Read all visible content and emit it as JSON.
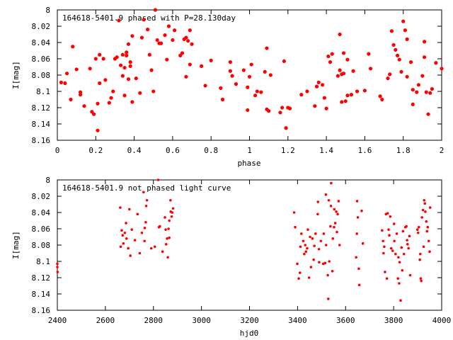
{
  "chart_data": [
    {
      "type": "scatter",
      "title": "164618-5401.9 phased with P=28.130day",
      "xlabel": "phase",
      "ylabel": "I[mag]",
      "xlim": [
        0,
        2
      ],
      "ylim": [
        8.16,
        8.0
      ],
      "y_inverted": true,
      "grid": false,
      "legend": "none",
      "marker_color": "#ff0000",
      "xticks": [
        "0",
        "0.2",
        "0.4",
        "0.6",
        "0.8",
        "1",
        "1.2",
        "1.4",
        "1.6",
        "1.8",
        "2"
      ],
      "xtick_values": [
        0,
        0.2,
        0.4,
        0.6,
        0.8,
        1.0,
        1.2,
        1.4,
        1.6,
        1.8,
        2.0
      ],
      "yticks": [
        "8",
        "8.02",
        "8.04",
        "8.06",
        "8.08",
        "8.1",
        "8.12",
        "8.14",
        "8.16"
      ],
      "ytick_values": [
        8.0,
        8.02,
        8.04,
        8.06,
        8.08,
        8.1,
        8.12,
        8.14,
        8.16
      ],
      "points": [
        [
          0.02,
          8.089
        ],
        [
          0.04,
          8.09
        ],
        [
          0.05,
          8.078
        ],
        [
          0.07,
          8.11
        ],
        [
          0.08,
          8.045
        ],
        [
          0.1,
          8.073
        ],
        [
          0.12,
          8.101
        ],
        [
          0.12,
          8.104
        ],
        [
          0.14,
          8.118
        ],
        [
          0.17,
          8.072
        ],
        [
          0.18,
          8.125
        ],
        [
          0.19,
          8.128
        ],
        [
          0.2,
          8.06
        ],
        [
          0.21,
          8.148
        ],
        [
          0.21,
          8.115
        ],
        [
          0.22,
          8.09
        ],
        [
          0.22,
          8.055
        ],
        [
          0.24,
          8.06
        ],
        [
          0.25,
          8.086
        ],
        [
          0.27,
          8.114
        ],
        [
          0.28,
          8.108
        ],
        [
          0.29,
          8.1
        ],
        [
          0.3,
          8.06
        ],
        [
          0.31,
          8.058
        ],
        [
          0.32,
          8.013
        ],
        [
          0.33,
          8.068
        ],
        [
          0.34,
          8.055
        ],
        [
          0.34,
          8.081
        ],
        [
          0.35,
          8.105
        ],
        [
          0.35,
          8.071
        ],
        [
          0.36,
          8.056
        ],
        [
          0.36,
          8.052
        ],
        [
          0.37,
          8.042
        ],
        [
          0.37,
          8.085
        ],
        [
          0.38,
          8.064
        ],
        [
          0.38,
          8.069
        ],
        [
          0.39,
          8.032
        ],
        [
          0.39,
          8.113
        ],
        [
          0.41,
          8.084
        ],
        [
          0.43,
          8.102
        ],
        [
          0.44,
          8.034
        ],
        [
          0.45,
          8.012
        ],
        [
          0.47,
          8.024
        ],
        [
          0.48,
          8.055
        ],
        [
          0.49,
          8.074
        ],
        [
          0.5,
          8.1
        ],
        [
          0.51,
          8.0
        ],
        [
          0.52,
          8.037
        ],
        [
          0.53,
          8.041
        ],
        [
          0.54,
          8.041
        ],
        [
          0.56,
          8.031
        ],
        [
          0.57,
          8.061
        ],
        [
          0.58,
          8.02
        ],
        [
          0.6,
          8.037
        ],
        [
          0.61,
          8.025
        ],
        [
          0.64,
          8.056
        ],
        [
          0.65,
          8.053
        ],
        [
          0.66,
          8.036
        ],
        [
          0.67,
          8.082
        ],
        [
          0.67,
          8.034
        ],
        [
          0.68,
          8.038
        ],
        [
          0.69,
          8.025
        ],
        [
          0.69,
          8.067
        ],
        [
          0.7,
          8.042
        ],
        [
          0.75,
          8.069
        ],
        [
          0.77,
          8.093
        ],
        [
          0.8,
          8.062
        ],
        [
          0.85,
          8.096
        ],
        [
          0.86,
          8.11
        ],
        [
          0.9,
          8.064
        ],
        [
          0.9,
          8.075
        ],
        [
          0.91,
          8.081
        ],
        [
          0.93,
          8.091
        ],
        [
          0.97,
          8.074
        ],
        [
          0.99,
          8.123
        ],
        [
          0.99,
          8.095
        ],
        [
          1.0,
          8.082
        ],
        [
          1.01,
          8.067
        ],
        [
          1.03,
          8.105
        ],
        [
          1.04,
          8.1
        ],
        [
          1.06,
          8.101
        ],
        [
          1.08,
          8.076
        ],
        [
          1.09,
          8.122
        ],
        [
          1.09,
          8.047
        ],
        [
          1.1,
          8.124
        ],
        [
          1.11,
          8.08
        ],
        [
          1.16,
          8.126
        ],
        [
          1.17,
          8.12
        ],
        [
          1.18,
          8.063
        ],
        [
          1.19,
          8.145
        ],
        [
          1.2,
          8.12
        ],
        [
          1.21,
          8.121
        ],
        [
          1.27,
          8.104
        ],
        [
          1.3,
          8.1
        ],
        [
          1.34,
          8.118
        ],
        [
          1.35,
          8.094
        ],
        [
          1.36,
          8.089
        ],
        [
          1.38,
          8.092
        ],
        [
          1.39,
          8.108
        ],
        [
          1.4,
          8.121
        ],
        [
          1.41,
          8.057
        ],
        [
          1.42,
          8.064
        ],
        [
          1.43,
          8.054
        ],
        [
          1.46,
          8.081
        ],
        [
          1.47,
          8.03
        ],
        [
          1.47,
          8.074
        ],
        [
          1.48,
          8.079
        ],
        [
          1.48,
          8.113
        ],
        [
          1.49,
          8.053
        ],
        [
          1.49,
          8.078
        ],
        [
          1.5,
          8.112
        ],
        [
          1.51,
          8.105
        ],
        [
          1.51,
          8.061
        ],
        [
          1.53,
          8.104
        ],
        [
          1.54,
          8.075
        ],
        [
          1.56,
          8.1
        ],
        [
          1.6,
          8.099
        ],
        [
          1.62,
          8.054
        ],
        [
          1.63,
          8.072
        ],
        [
          1.68,
          8.106
        ],
        [
          1.69,
          8.11
        ],
        [
          1.72,
          8.084
        ],
        [
          1.73,
          8.079
        ],
        [
          1.74,
          8.026
        ],
        [
          1.75,
          8.043
        ],
        [
          1.76,
          8.049
        ],
        [
          1.77,
          8.056
        ],
        [
          1.78,
          8.061
        ],
        [
          1.79,
          8.076
        ],
        [
          1.8,
          8.014
        ],
        [
          1.81,
          8.025
        ],
        [
          1.82,
          8.036
        ],
        [
          1.82,
          8.082
        ],
        [
          1.84,
          8.064
        ],
        [
          1.85,
          8.098
        ],
        [
          1.85,
          8.116
        ],
        [
          1.87,
          8.101
        ],
        [
          1.88,
          8.092
        ],
        [
          1.9,
          8.081
        ],
        [
          1.91,
          8.058
        ],
        [
          1.91,
          8.039
        ],
        [
          1.92,
          8.101
        ],
        [
          1.93,
          8.128
        ],
        [
          1.94,
          8.102
        ],
        [
          1.95,
          8.097
        ],
        [
          1.97,
          8.065
        ],
        [
          2.0,
          8.072
        ]
      ]
    },
    {
      "type": "scatter",
      "title": "164618-5401.9 not phased light curve",
      "xlabel": "hjd0",
      "ylabel": "I[mag]",
      "xlim": [
        2400,
        4000
      ],
      "ylim": [
        8.16,
        8.0
      ],
      "y_inverted": true,
      "grid": false,
      "legend": "none",
      "marker_color": "#ff0000",
      "xticks": [
        "2400",
        "2600",
        "2800",
        "3000",
        "3200",
        "3400",
        "3600",
        "3800",
        "4000"
      ],
      "xtick_values": [
        2400,
        2600,
        2800,
        3000,
        3200,
        3400,
        3600,
        3800,
        4000
      ],
      "yticks": [
        "8",
        "8.02",
        "8.04",
        "8.06",
        "8.08",
        "8.1",
        "8.12",
        "8.14",
        "8.16"
      ],
      "ytick_values": [
        8.0,
        8.02,
        8.04,
        8.06,
        8.08,
        8.1,
        8.12,
        8.14,
        8.16
      ],
      "points": [
        [
          2400,
          8.103
        ],
        [
          2400,
          8.107
        ],
        [
          2401,
          8.113
        ],
        [
          2662,
          8.034
        ],
        [
          2664,
          8.082
        ],
        [
          2668,
          8.062
        ],
        [
          2672,
          8.068
        ],
        [
          2675,
          8.078
        ],
        [
          2681,
          8.065
        ],
        [
          2686,
          8.053
        ],
        [
          2688,
          8.072
        ],
        [
          2695,
          8.084
        ],
        [
          2700,
          8.036
        ],
        [
          2704,
          8.093
        ],
        [
          2710,
          8.061
        ],
        [
          2723,
          8.074
        ],
        [
          2734,
          8.042
        ],
        [
          2743,
          8.09
        ],
        [
          2752,
          8.065
        ],
        [
          2759,
          8.015
        ],
        [
          2763,
          8.075
        ],
        [
          2764,
          8.059
        ],
        [
          2768,
          8.052
        ],
        [
          2770,
          8.032
        ],
        [
          2773,
          8.025
        ],
        [
          2791,
          8.084
        ],
        [
          2806,
          8.082
        ],
        [
          2820,
          8.0
        ],
        [
          2823,
          8.058
        ],
        [
          2827,
          8.057
        ],
        [
          2838,
          8.088
        ],
        [
          2848,
          8.046
        ],
        [
          2851,
          8.061
        ],
        [
          2853,
          8.079
        ],
        [
          2857,
          8.072
        ],
        [
          2860,
          8.095
        ],
        [
          2863,
          8.06
        ],
        [
          2866,
          8.071
        ],
        [
          2866,
          8.05
        ],
        [
          2871,
          8.025
        ],
        [
          2872,
          8.039
        ],
        [
          2876,
          8.045
        ],
        [
          2878,
          8.04
        ],
        [
          2882,
          8.035
        ],
        [
          3386,
          8.04
        ],
        [
          3390,
          8.058
        ],
        [
          3399,
          8.103
        ],
        [
          3405,
          8.121
        ],
        [
          3410,
          8.114
        ],
        [
          3412,
          8.082
        ],
        [
          3416,
          8.066
        ],
        [
          3424,
          8.075
        ],
        [
          3428,
          8.091
        ],
        [
          3432,
          8.08
        ],
        [
          3435,
          8.088
        ],
        [
          3440,
          8.084
        ],
        [
          3443,
          8.061
        ],
        [
          3448,
          8.12
        ],
        [
          3452,
          8.07
        ],
        [
          3456,
          8.107
        ],
        [
          3462,
          8.072
        ],
        [
          3467,
          8.098
        ],
        [
          3470,
          8.081
        ],
        [
          3475,
          8.066
        ],
        [
          3484,
          8.042
        ],
        [
          3485,
          8.027
        ],
        [
          3489,
          8.085
        ],
        [
          3490,
          8.101
        ],
        [
          3497,
          8.075
        ],
        [
          3507,
          8.103
        ],
        [
          3509,
          8.066
        ],
        [
          3515,
          8.102
        ],
        [
          3518,
          8.018
        ],
        [
          3519,
          8.08
        ],
        [
          3526,
          8.117
        ],
        [
          3528,
          8.146
        ],
        [
          3530,
          8.025
        ],
        [
          3532,
          8.1
        ],
        [
          3537,
          8.057
        ],
        [
          3539,
          8.032
        ],
        [
          3540,
          8.004
        ],
        [
          3545,
          8.112
        ],
        [
          3547,
          8.072
        ],
        [
          3552,
          8.058
        ],
        [
          3553,
          8.036
        ],
        [
          3557,
          8.053
        ],
        [
          3561,
          8.039
        ],
        [
          3564,
          8.064
        ],
        [
          3567,
          8.042
        ],
        [
          3571,
          8.026
        ],
        [
          3575,
          8.08
        ],
        [
          3644,
          8.095
        ],
        [
          3647,
          8.066
        ],
        [
          3648,
          8.026
        ],
        [
          3651,
          8.046
        ],
        [
          3655,
          8.109
        ],
        [
          3657,
          8.129
        ],
        [
          3667,
          8.038
        ],
        [
          3672,
          8.078
        ],
        [
          3752,
          8.062
        ],
        [
          3756,
          8.075
        ],
        [
          3758,
          8.09
        ],
        [
          3761,
          8.082
        ],
        [
          3764,
          8.113
        ],
        [
          3768,
          8.042
        ],
        [
          3772,
          8.121
        ],
        [
          3775,
          8.041
        ],
        [
          3779,
          8.061
        ],
        [
          3782,
          8.068
        ],
        [
          3786,
          8.045
        ],
        [
          3790,
          8.084
        ],
        [
          3796,
          8.087
        ],
        [
          3802,
          8.054
        ],
        [
          3803,
          8.075
        ],
        [
          3808,
          8.091
        ],
        [
          3813,
          8.066
        ],
        [
          3818,
          8.121
        ],
        [
          3820,
          8.095
        ],
        [
          3823,
          8.127
        ],
        [
          3825,
          8.101
        ],
        [
          3829,
          8.148
        ],
        [
          3833,
          8.083
        ],
        [
          3836,
          8.111
        ],
        [
          3839,
          8.063
        ],
        [
          3843,
          8.091
        ],
        [
          3849,
          8.058
        ],
        [
          3853,
          8.057
        ],
        [
          3856,
          8.074
        ],
        [
          3858,
          8.079
        ],
        [
          3862,
          8.084
        ],
        [
          3866,
          8.069
        ],
        [
          3869,
          8.117
        ],
        [
          3899,
          8.061
        ],
        [
          3902,
          8.065
        ],
        [
          3905,
          8.058
        ],
        [
          3909,
          8.098
        ],
        [
          3911,
          8.091
        ],
        [
          3913,
          8.121
        ],
        [
          3915,
          8.124
        ],
        [
          3918,
          8.046
        ],
        [
          3922,
          8.037
        ],
        [
          3925,
          8.082
        ],
        [
          3927,
          8.025
        ],
        [
          3930,
          8.029
        ],
        [
          3932,
          8.039
        ],
        [
          3936,
          8.051
        ],
        [
          3939,
          8.063
        ],
        [
          3942,
          8.058
        ],
        [
          3946,
          8.075
        ],
        [
          3950,
          8.088
        ],
        [
          3952,
          8.034
        ]
      ]
    }
  ]
}
